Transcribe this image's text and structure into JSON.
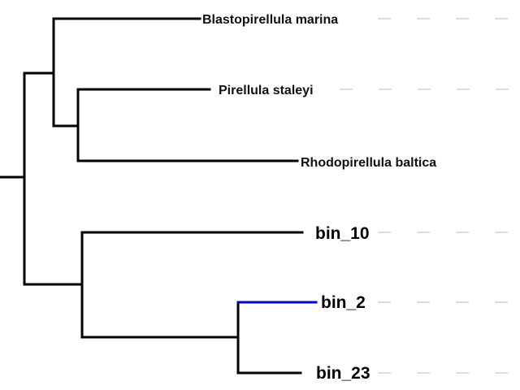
{
  "diagram": {
    "type": "phylogenetic-tree",
    "highlight_color": "#0000e0",
    "branch_color": "#000000",
    "guide_color": "#c8c8c8",
    "leaves": [
      {
        "label": "Blastopirellula marina"
      },
      {
        "label": "Pirellula staleyi"
      },
      {
        "label": "Rhodopirellula baltica"
      },
      {
        "label": "bin_10"
      },
      {
        "label": "bin_2",
        "highlighted": true
      },
      {
        "label": "bin_23"
      }
    ]
  }
}
